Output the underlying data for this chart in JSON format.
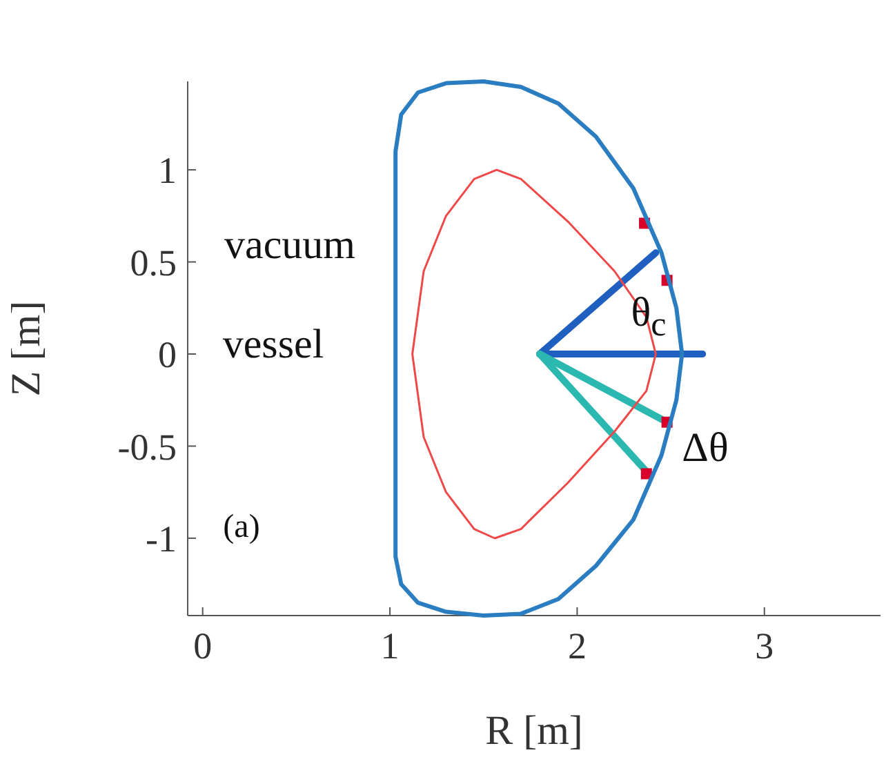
{
  "chart_data": {
    "type": "line",
    "xlabel": "R [m]",
    "ylabel": "Z [m]",
    "xlim": [
      -0.08,
      3.62
    ],
    "ylim": [
      -1.42,
      1.48
    ],
    "xticks": [
      0,
      1,
      2,
      3
    ],
    "yticks": [
      -1,
      -0.5,
      0,
      0.5,
      1
    ],
    "grid": false,
    "legend": false,
    "marker": "none",
    "line_style": "solid",
    "series": [
      {
        "color": "#1f5fbf",
        "x": [
          1.8,
          2.42
        ],
        "values": [
          0,
          0.55
        ]
      },
      {
        "color": "#1f5fbf",
        "x": [
          1.8,
          2.67
        ],
        "values": [
          0,
          0
        ]
      },
      {
        "color": "#2bb8b0",
        "x": [
          1.8,
          2.48
        ],
        "values": [
          0,
          -0.37
        ]
      },
      {
        "color": "#2bb8b0",
        "x": [
          1.8,
          2.39
        ],
        "values": [
          0,
          -0.66
        ]
      },
      {
        "type": "scatter",
        "color": "#d8002a",
        "marker": "square",
        "x": [
          2.36,
          2.48,
          2.48,
          2.37
        ],
        "values": [
          0.71,
          0.4,
          -0.37,
          -0.65
        ]
      }
    ],
    "annotations": [
      "vacuum",
      "vessel",
      "θ$_{c}$",
      "Δθ",
      "(a)"
    ]
  }
}
